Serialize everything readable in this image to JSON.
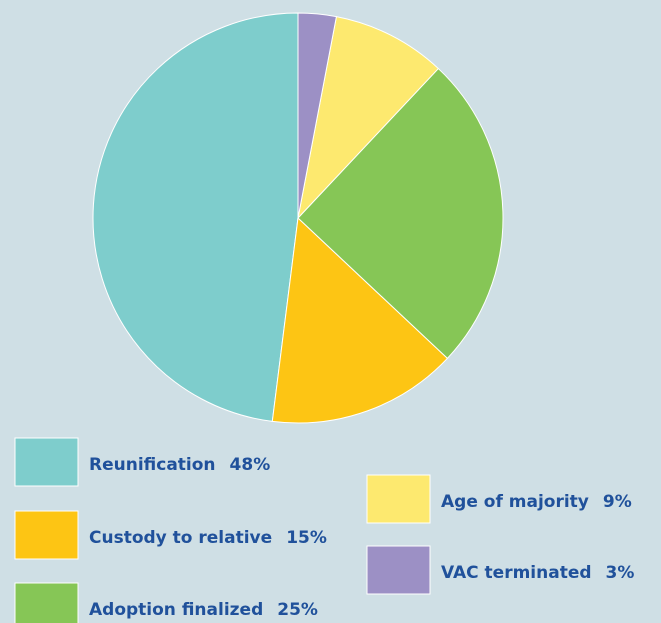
{
  "chart_data": {
    "type": "pie",
    "categories": [
      "Reunification",
      "Custody to relative",
      "Adoption finalized",
      "Age of majority",
      "VAC terminated"
    ],
    "values": [
      48,
      15,
      25,
      9,
      3
    ],
    "value_labels": [
      "48%",
      "15%",
      "25%",
      "9%",
      "3%"
    ],
    "colors": [
      "#7ecdcc",
      "#fdc514",
      "#86c656",
      "#fde96f",
      "#9c90c5"
    ],
    "direction": "counterclockwise"
  }
}
